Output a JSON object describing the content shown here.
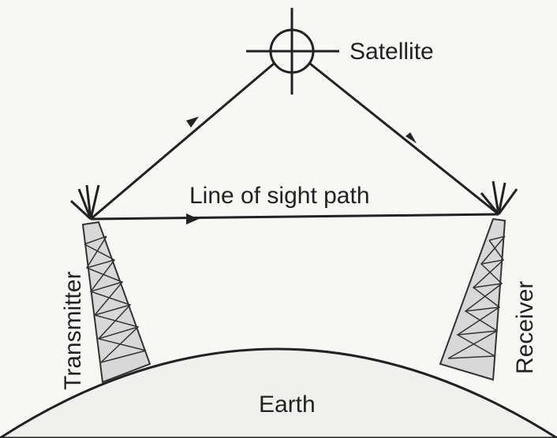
{
  "labels": {
    "satellite": "Satellite",
    "path": "Line of sight path",
    "transmitter": "Transmitter",
    "receiver": "Receiver",
    "earth": "Earth"
  }
}
